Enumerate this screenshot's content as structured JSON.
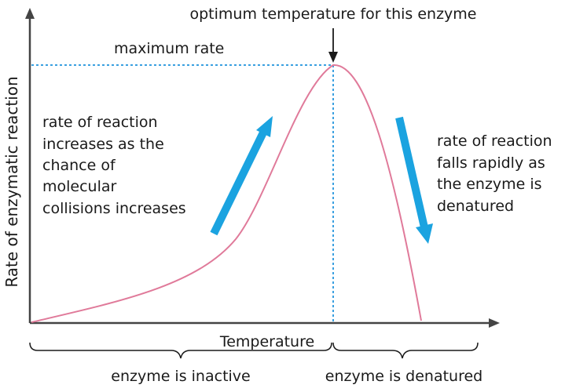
{
  "labels": {
    "optimum": "optimum temperature for this enzyme",
    "max_rate": "maximum rate",
    "rise": [
      "rate of reaction",
      "increases as the",
      "chance of",
      "molecular",
      "collisions increases"
    ],
    "fall": [
      "rate of reaction",
      "falls rapidly as",
      "the enzyme is",
      "denatured"
    ],
    "y_axis": "Rate of enzymatic reaction",
    "x_axis": "Temperature",
    "inactive": "enzyme is inactive",
    "denatured": "enzyme is denatured"
  },
  "colors": {
    "curve": "#e07a9a",
    "arrow": "#1ba3e0",
    "guide": "#3aa0e0",
    "axis": "#1a1a1a"
  }
}
